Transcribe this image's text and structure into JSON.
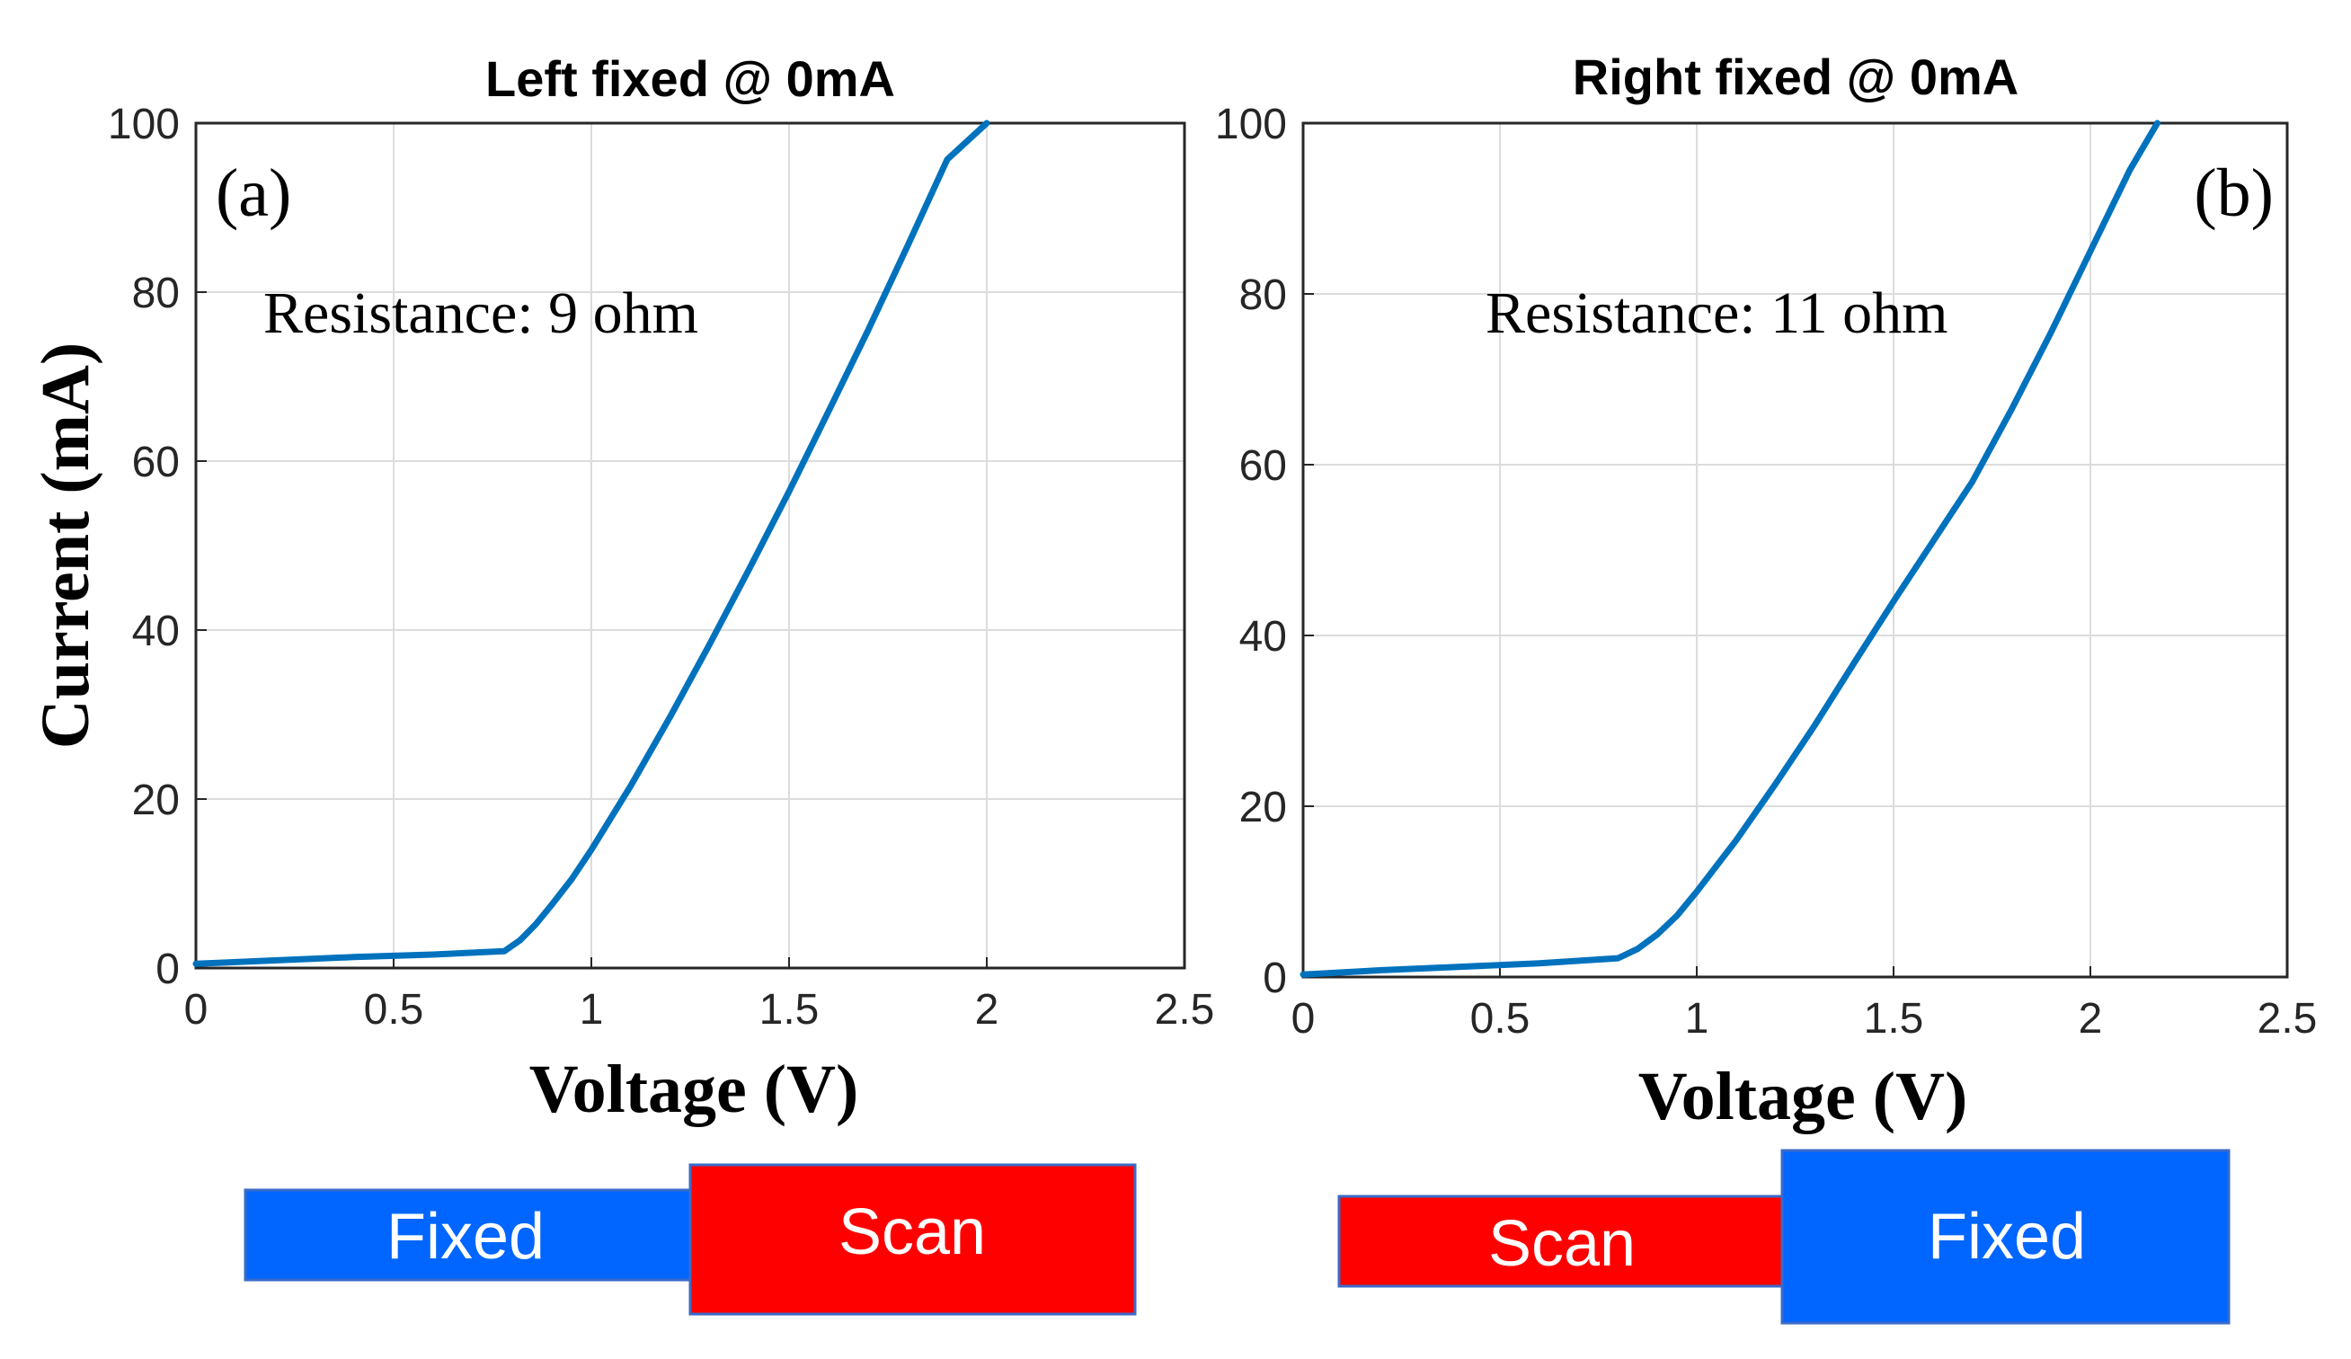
{
  "y_axis_label": "Current (mA)",
  "x_axis_label": "Voltage (V)",
  "chart_data": [
    {
      "type": "line",
      "title": "Left fixed @ 0mA",
      "panel_label": "(a)",
      "annotation": "Resistance: 9 ohm",
      "xlabel": "Voltage (V)",
      "ylabel": "Current (mA)",
      "xlim": [
        0,
        2.5
      ],
      "ylim": [
        0,
        100
      ],
      "xticks": [
        "0",
        "0.5",
        "1",
        "1.5",
        "2",
        "2.5"
      ],
      "yticks": [
        "0",
        "20",
        "40",
        "60",
        "80",
        "100"
      ],
      "grid": true,
      "color": "#0072BD",
      "series": [
        {
          "x": [
            0,
            0.2,
            0.4,
            0.6,
            0.78,
            0.82,
            0.86,
            0.9,
            0.95,
            1.0,
            1.1,
            1.2,
            1.3,
            1.4,
            1.5,
            1.6,
            1.7,
            1.8,
            1.9,
            2.0
          ],
          "y": [
            0.5,
            0.9,
            1.3,
            1.6,
            2.0,
            3.3,
            5.2,
            7.5,
            10.5,
            14.0,
            21.6,
            29.8,
            38.4,
            47.3,
            56.4,
            65.9,
            75.5,
            85.5,
            95.7,
            100
          ]
        }
      ],
      "legend_boxes": [
        {
          "label": "Fixed",
          "color": "#0066FF"
        },
        {
          "label": "Scan",
          "color": "#FF0000"
        }
      ]
    },
    {
      "type": "line",
      "title": "Right fixed @ 0mA",
      "panel_label": "(b)",
      "annotation": "Resistance: 11 ohm",
      "xlabel": "Voltage (V)",
      "ylabel": "",
      "xlim": [
        0,
        2.5
      ],
      "ylim": [
        0,
        100
      ],
      "xticks": [
        "0",
        "0.5",
        "1",
        "1.5",
        "2",
        "2.5"
      ],
      "yticks": [
        "0",
        "20",
        "40",
        "60",
        "80",
        "100"
      ],
      "grid": true,
      "color": "#0072BD",
      "series": [
        {
          "x": [
            0,
            0.2,
            0.4,
            0.6,
            0.8,
            0.85,
            0.9,
            0.95,
            1.0,
            1.1,
            1.2,
            1.3,
            1.4,
            1.5,
            1.6,
            1.7,
            1.8,
            1.9,
            2.0,
            2.1,
            2.17
          ],
          "y": [
            0.3,
            0.8,
            1.2,
            1.6,
            2.2,
            3.3,
            5.0,
            7.2,
            10.0,
            16.0,
            22.6,
            29.5,
            36.8,
            44.0,
            51.0,
            58.0,
            66.5,
            75.5,
            85.0,
            94.5,
            100
          ]
        }
      ],
      "legend_boxes": [
        {
          "label": "Scan",
          "color": "#FF0000"
        },
        {
          "label": "Fixed",
          "color": "#0066FF"
        }
      ]
    }
  ]
}
